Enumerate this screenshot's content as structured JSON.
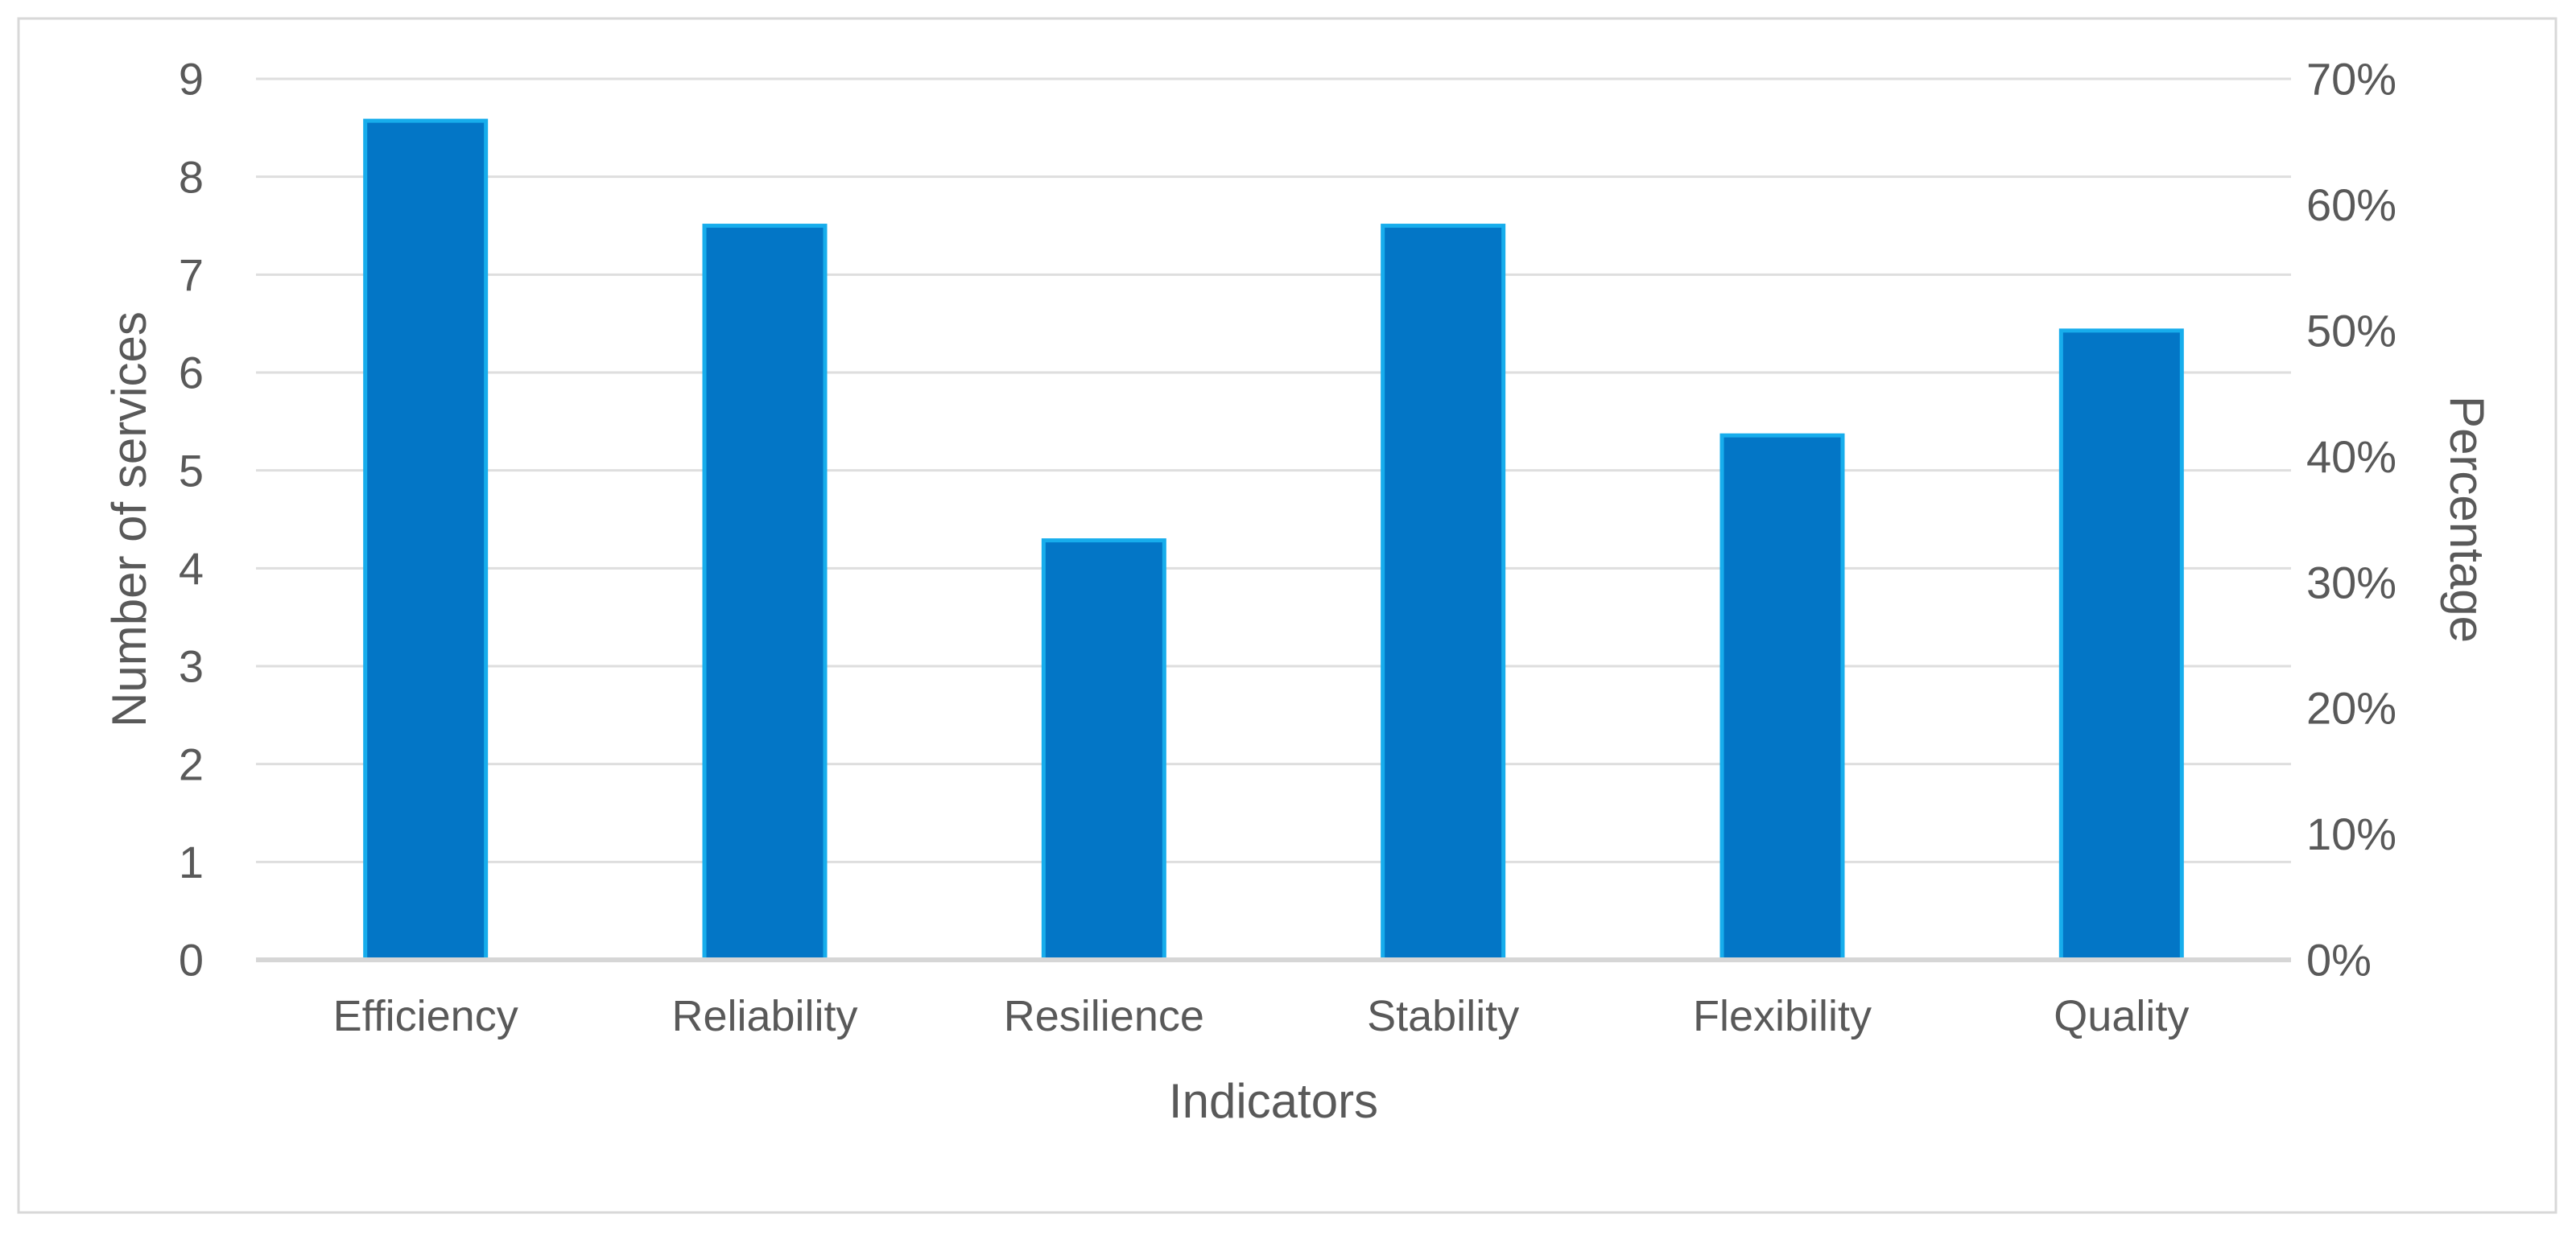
{
  "figure": {
    "background": "#ffffff",
    "border_color": "#d8d8d8",
    "title": ""
  },
  "chart_data": {
    "type": "bar",
    "title": "",
    "xlabel": "Indicators",
    "ylabel_left": "Number of services",
    "ylabel_right": "Percentage",
    "categories": [
      "Efficiency",
      "Reliability",
      "Resilience",
      "Stability",
      "Flexibility",
      "Quality"
    ],
    "series": [
      {
        "name": "Indicators",
        "values_percent": [
          66.67,
          58.33,
          33.33,
          58.33,
          41.67,
          50.0
        ],
        "values_left_axis_equivalent": [
          8.57,
          7.5,
          4.29,
          7.5,
          5.36,
          6.43
        ]
      }
    ],
    "axis_left": {
      "min": 0,
      "max": 9,
      "tick_labels": [
        "0",
        "1",
        "2",
        "3",
        "4",
        "5",
        "6",
        "7",
        "8",
        "9"
      ]
    },
    "axis_right": {
      "min": 0,
      "max": 70,
      "tick_labels": [
        "0%",
        "10%",
        "20%",
        "30%",
        "40%",
        "50%",
        "60%",
        "70%"
      ]
    },
    "grid": "horizontal",
    "legend": "none",
    "bar_fill_color": "#0376C6",
    "bar_border_color": "#17ADEC",
    "gridline_color": "#dedede",
    "baseline_color": "#d6d6d6",
    "text_color": "#595959"
  }
}
